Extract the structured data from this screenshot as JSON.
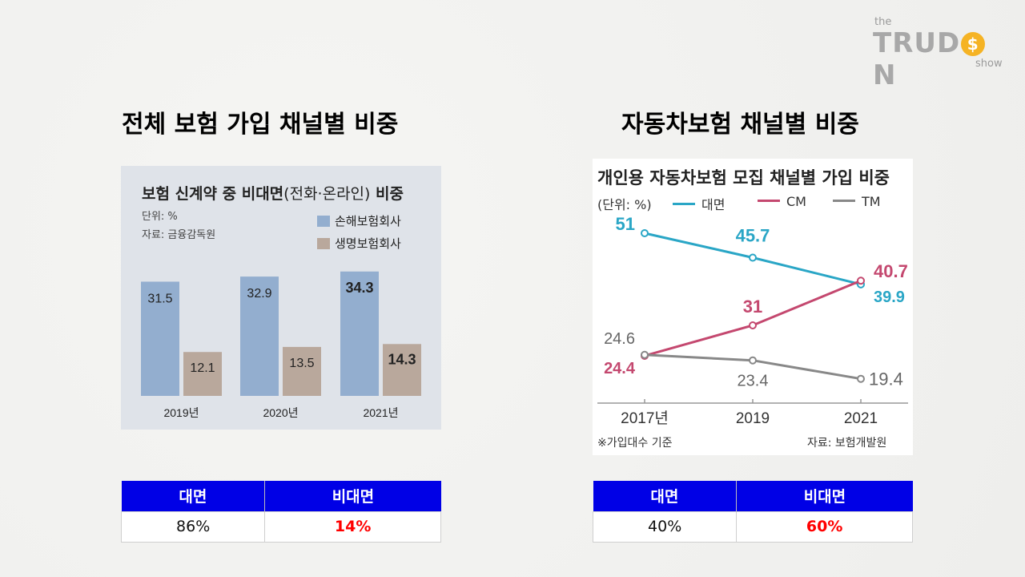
{
  "logo": {
    "the": "the",
    "brand_pre": "TRUD",
    "brand_coin": "$",
    "brand_post": "N",
    "show": "show"
  },
  "sections": {
    "left_title": "전체 보험 가입 채널별 비중",
    "right_title": "자동차보험 채널별 비중"
  },
  "left_panel": {
    "title_bold1": "보험 신계약 중 비대면",
    "title_light": "(전화·온라인)",
    "title_bold2": " 비중",
    "unit": "단위: %",
    "source": "자료: 금융감독원",
    "legend": [
      "손해보험회사",
      "생명보험회사"
    ]
  },
  "right_panel": {
    "title": "개인용 자동차보험 모집 채널별 가입 비중",
    "unit": "(단위: %)",
    "legend": [
      "대면",
      "CM",
      "TM"
    ],
    "note": "※가입대수 기준",
    "source": "자료: 보험개발원"
  },
  "colors": {
    "bar_nonlife": "#93aecf",
    "bar_life": "#b9a89c",
    "line_face": "#2aa6c6",
    "line_cm": "#c4486f",
    "line_tm": "#888888",
    "table_header": "#0000e6",
    "highlight": "#ff0000"
  },
  "chart_data": [
    {
      "type": "bar",
      "title": "보험 신계약 중 비대면(전화·온라인) 비중",
      "categories": [
        "2019년",
        "2020년",
        "2021년"
      ],
      "series": [
        {
          "name": "손해보험회사",
          "values": [
            31.5,
            32.9,
            34.3
          ]
        },
        {
          "name": "생명보험회사",
          "values": [
            12.1,
            13.5,
            14.3
          ]
        }
      ],
      "value_labels": {
        "손해보험회사": [
          "31.5",
          "32.9",
          "34.3"
        ],
        "생명보험회사": [
          "12.1",
          "13.5",
          "14.3"
        ]
      },
      "ylim": [
        0,
        40
      ]
    },
    {
      "type": "line",
      "title": "개인용 자동차보험 모집 채널별 가입 비중",
      "x": [
        "2017년",
        "2019",
        "2021"
      ],
      "series": [
        {
          "name": "대면",
          "values": [
            51,
            45.7,
            39.9
          ],
          "labels": [
            "51",
            "45.7",
            "39.9"
          ]
        },
        {
          "name": "CM",
          "values": [
            24.4,
            31,
            40.7
          ],
          "labels": [
            "24.4",
            "31",
            "40.7"
          ]
        },
        {
          "name": "TM",
          "values": [
            24.6,
            23.4,
            19.4
          ],
          "labels": [
            "24.6",
            "23.4",
            "19.4"
          ]
        }
      ],
      "ylim": [
        15,
        55
      ]
    }
  ],
  "tables": {
    "left": {
      "headers": [
        "대면",
        "비대면"
      ],
      "values": [
        "86%",
        "14%"
      ]
    },
    "right": {
      "headers": [
        "대면",
        "비대면"
      ],
      "values": [
        "40%",
        "60%"
      ]
    }
  }
}
